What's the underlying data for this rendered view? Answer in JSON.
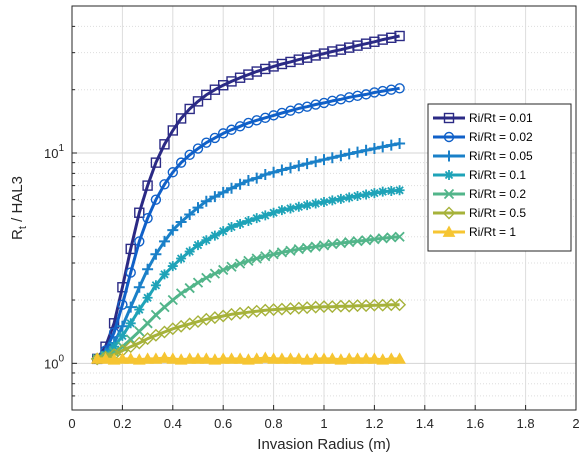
{
  "chart_data": {
    "type": "line",
    "xlabel": "Invasion Radius (m)",
    "ylabel": "R",
    "ylabel_sub": "t",
    "ylabel_suffix": " / HAL3",
    "xlim": [
      0,
      2
    ],
    "ylim": [
      0.6,
      50
    ],
    "yscale": "log",
    "grid": true,
    "legend_position": "right",
    "x_ticks": [
      0,
      0.2,
      0.4,
      0.6,
      0.8,
      1,
      1.2,
      1.4,
      1.6,
      1.8,
      2
    ],
    "x_tick_labels": [
      "0",
      "0.2",
      "0.4",
      "0.6",
      "0.8",
      "1",
      "1.2",
      "1.4",
      "1.6",
      "1.8",
      "2"
    ],
    "y_ticks": [
      {
        "value": 1,
        "base": "10",
        "exp": "0"
      },
      {
        "value": 10,
        "base": "10",
        "exp": "1"
      }
    ],
    "x": [
      0.1,
      0.133,
      0.167,
      0.2,
      0.233,
      0.267,
      0.3,
      0.333,
      0.367,
      0.4,
      0.433,
      0.467,
      0.5,
      0.533,
      0.567,
      0.6,
      0.633,
      0.667,
      0.7,
      0.733,
      0.767,
      0.8,
      0.833,
      0.867,
      0.9,
      0.933,
      0.967,
      1.0,
      1.033,
      1.067,
      1.1,
      1.133,
      1.167,
      1.2,
      1.233,
      1.267,
      1.3
    ],
    "series": [
      {
        "name": "Ri/Rt = 0.01",
        "color": "#2b2a85",
        "marker": "square",
        "values": [
          1.05,
          1.2,
          1.55,
          2.3,
          3.5,
          5.2,
          7.0,
          9.0,
          11.0,
          12.8,
          14.6,
          16.2,
          17.6,
          18.9,
          20.0,
          21.0,
          21.9,
          22.8,
          23.6,
          24.4,
          25.1,
          25.8,
          26.5,
          27.1,
          27.8,
          28.4,
          29.1,
          29.7,
          30.4,
          31.0,
          31.7,
          32.4,
          33.1,
          33.8,
          34.6,
          35.3,
          36.0
        ]
      },
      {
        "name": "Ri/Rt = 0.02",
        "color": "#1060c8",
        "marker": "circle",
        "values": [
          1.05,
          1.15,
          1.4,
          1.9,
          2.7,
          3.8,
          4.9,
          6.0,
          7.1,
          8.1,
          9.0,
          9.8,
          10.5,
          11.2,
          11.8,
          12.4,
          12.9,
          13.4,
          13.9,
          14.3,
          14.7,
          15.1,
          15.5,
          15.9,
          16.3,
          16.6,
          17.0,
          17.3,
          17.7,
          18.0,
          18.4,
          18.7,
          19.0,
          19.4,
          19.7,
          20.0,
          20.3
        ]
      },
      {
        "name": "Ri/Rt = 0.05",
        "color": "#1a80c8",
        "marker": "plus",
        "values": [
          1.05,
          1.12,
          1.25,
          1.5,
          1.85,
          2.3,
          2.8,
          3.3,
          3.8,
          4.3,
          4.7,
          5.1,
          5.5,
          5.9,
          6.2,
          6.5,
          6.8,
          7.1,
          7.4,
          7.6,
          7.9,
          8.1,
          8.3,
          8.5,
          8.7,
          8.9,
          9.1,
          9.3,
          9.5,
          9.7,
          9.9,
          10.1,
          10.3,
          10.5,
          10.7,
          10.9,
          11.1
        ]
      },
      {
        "name": "Ri/Rt = 0.1",
        "color": "#1ea3b8",
        "marker": "star",
        "values": [
          1.05,
          1.1,
          1.2,
          1.35,
          1.55,
          1.8,
          2.05,
          2.35,
          2.65,
          2.9,
          3.15,
          3.4,
          3.65,
          3.85,
          4.05,
          4.25,
          4.45,
          4.6,
          4.75,
          4.9,
          5.05,
          5.2,
          5.35,
          5.45,
          5.55,
          5.65,
          5.75,
          5.85,
          5.95,
          6.05,
          6.15,
          6.25,
          6.35,
          6.45,
          6.55,
          6.6,
          6.65
        ]
      },
      {
        "name": "Ri/Rt = 0.2",
        "color": "#52b58a",
        "marker": "x",
        "values": [
          1.05,
          1.08,
          1.13,
          1.2,
          1.3,
          1.42,
          1.55,
          1.7,
          1.85,
          2.0,
          2.15,
          2.28,
          2.42,
          2.55,
          2.67,
          2.78,
          2.88,
          2.98,
          3.07,
          3.15,
          3.23,
          3.3,
          3.37,
          3.43,
          3.49,
          3.54,
          3.59,
          3.64,
          3.69,
          3.73,
          3.77,
          3.81,
          3.85,
          3.89,
          3.93,
          3.97,
          4.0
        ]
      },
      {
        "name": "Ri/Rt = 0.5",
        "color": "#a6b23a",
        "marker": "diamond",
        "values": [
          1.05,
          1.07,
          1.1,
          1.15,
          1.2,
          1.25,
          1.31,
          1.36,
          1.41,
          1.46,
          1.5,
          1.54,
          1.58,
          1.62,
          1.65,
          1.68,
          1.71,
          1.73,
          1.75,
          1.77,
          1.79,
          1.8,
          1.81,
          1.82,
          1.83,
          1.84,
          1.85,
          1.86,
          1.86,
          1.87,
          1.87,
          1.88,
          1.88,
          1.89,
          1.89,
          1.9,
          1.9
        ]
      },
      {
        "name": "Ri/Rt = 1",
        "color": "#f6c532",
        "marker": "triangle",
        "values": [
          1.05,
          1.05,
          1.04,
          1.05,
          1.05,
          1.04,
          1.05,
          1.05,
          1.06,
          1.05,
          1.04,
          1.05,
          1.05,
          1.05,
          1.04,
          1.05,
          1.05,
          1.05,
          1.04,
          1.05,
          1.06,
          1.05,
          1.05,
          1.05,
          1.05,
          1.04,
          1.05,
          1.05,
          1.05,
          1.04,
          1.05,
          1.05,
          1.05,
          1.05,
          1.04,
          1.05,
          1.05
        ]
      }
    ]
  }
}
